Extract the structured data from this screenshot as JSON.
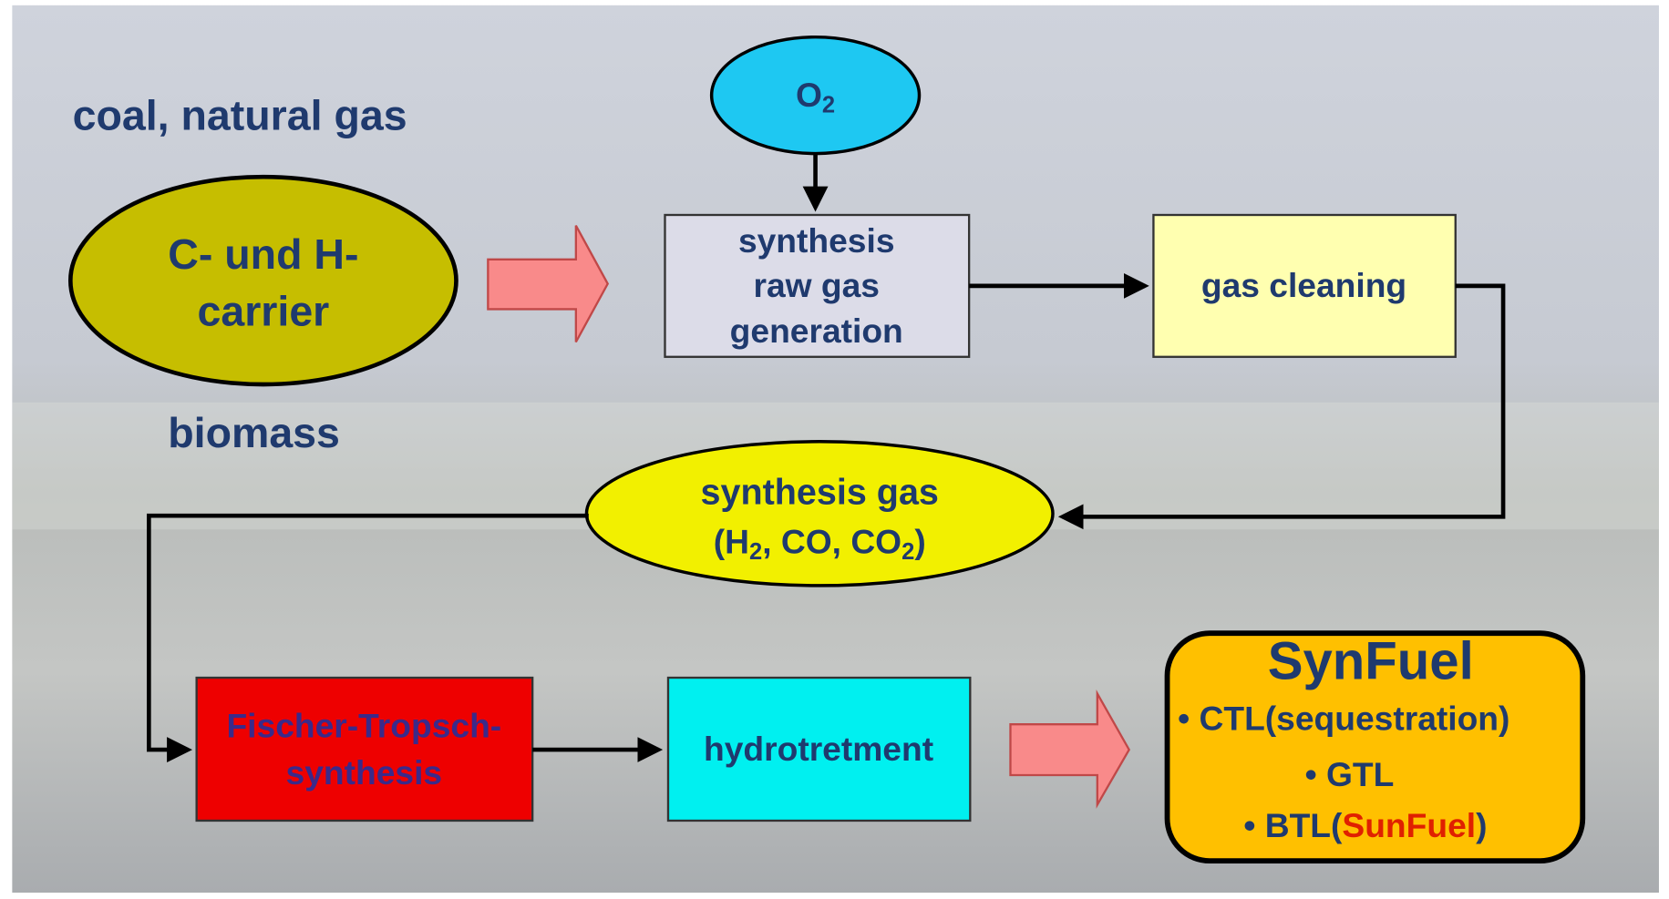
{
  "labels": {
    "top_left": "coal, natural gas",
    "bottom_left": "biomass"
  },
  "nodes": {
    "carrier": {
      "lines": [
        "C- und H-",
        "carrier"
      ]
    },
    "oxygen": {
      "text": "O",
      "sub": "2"
    },
    "raw_gas": {
      "lines": [
        "synthesis",
        "raw gas",
        "generation"
      ]
    },
    "cleaning": {
      "text": "gas cleaning"
    },
    "syngas": {
      "line1": "synthesis gas",
      "line2": [
        "(H",
        "2",
        ", CO, CO",
        "2",
        ")"
      ]
    },
    "fischer": {
      "lines": [
        "Fischer-Tropsch-",
        "synthesis"
      ]
    },
    "hydro": {
      "text": "hydrotretment"
    },
    "synfuel": {
      "title": "SynFuel",
      "items": [
        "• CTL(sequestration)",
        "• GTL"
      ],
      "last": [
        "• BTL(",
        "SunFuel",
        ")"
      ]
    }
  }
}
